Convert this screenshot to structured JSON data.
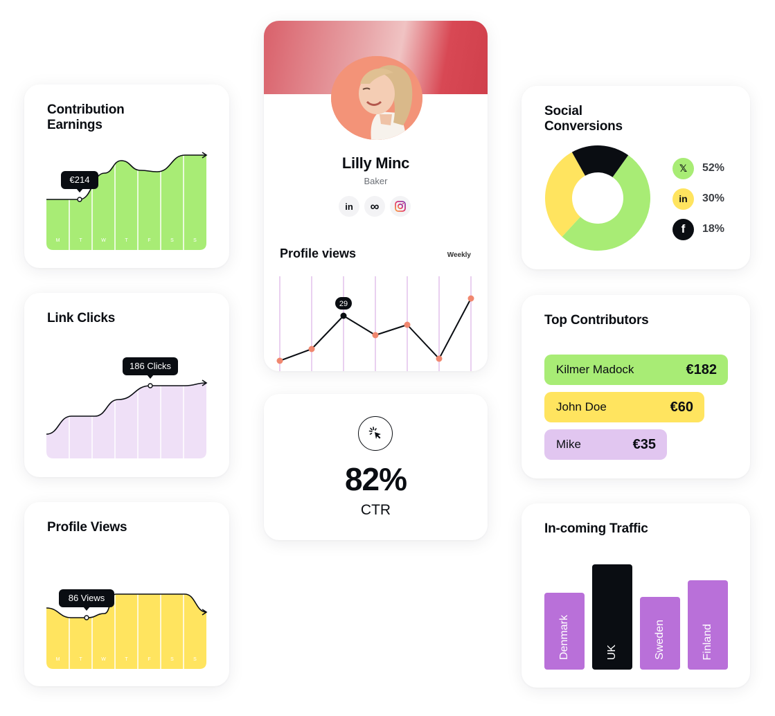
{
  "colors": {
    "green": "#a8ec75",
    "yellow": "#ffe45f",
    "lilac": "#efe0f7",
    "purple": "#b970d9",
    "lavender": "#e1c6f0",
    "black": "#0a0d12",
    "coral": "#f39378"
  },
  "contribution": {
    "title": "Contribution Earnings",
    "tooltip": "€214",
    "days": [
      "M",
      "T",
      "W",
      "T",
      "F",
      "S",
      "S"
    ],
    "trend": [
      30,
      30,
      72,
      55,
      90
    ]
  },
  "link_clicks": {
    "title": "Link Clicks",
    "tooltip": "186 Clicks",
    "trend": [
      20,
      45,
      72,
      72,
      80
    ]
  },
  "profile_views_card": {
    "title": "Profile Views",
    "tooltip": "86 Views",
    "days": [
      "M",
      "T",
      "W",
      "T",
      "F",
      "S",
      "S"
    ],
    "trend": [
      55,
      40,
      70,
      70,
      55
    ]
  },
  "profile": {
    "name": "Lilly Minc",
    "role": "Baker",
    "socials": [
      {
        "icon": "linkedin-icon",
        "glyph": "in"
      },
      {
        "icon": "meta-icon",
        "glyph": "∞"
      },
      {
        "icon": "instagram-icon",
        "glyph": ""
      }
    ],
    "views_title": "Profile views",
    "period": "Weekly",
    "highlight_label": "29"
  },
  "ctr": {
    "value": "82%",
    "label": "CTR",
    "icon": "cursor-click-icon"
  },
  "social": {
    "title": "Social Conversions",
    "items": [
      {
        "network": "X",
        "icon": "x-icon",
        "glyph": "𝕏",
        "value": "52%",
        "share": 52,
        "color": "#a8ec75"
      },
      {
        "network": "LinkedIn",
        "icon": "linkedin-icon",
        "glyph": "in",
        "value": "30%",
        "share": 30,
        "color": "#ffe45f"
      },
      {
        "network": "Facebook",
        "icon": "facebook-icon",
        "glyph": "f",
        "value": "18%",
        "share": 18,
        "color": "#0a0d12"
      }
    ]
  },
  "contributors": {
    "title": "Top Contributors",
    "items": [
      {
        "name": "Kilmer Madock",
        "amount": "€182",
        "value": 182,
        "color": "#a8ec75"
      },
      {
        "name": "John Doe",
        "amount": "€60",
        "value": 60,
        "color": "#ffe45f"
      },
      {
        "name": "Mike",
        "amount": "€35",
        "value": 35,
        "color": "#e1c6f0"
      }
    ]
  },
  "traffic": {
    "title": "In-coming Traffic",
    "items": [
      {
        "country": "Denmark",
        "level": 0.73,
        "color": "#b970d9"
      },
      {
        "country": "UK",
        "level": 1.0,
        "color": "#0a0d12"
      },
      {
        "country": "Sweden",
        "level": 0.69,
        "color": "#b970d9"
      },
      {
        "country": "Finland",
        "level": 0.85,
        "color": "#b970d9"
      }
    ]
  }
}
